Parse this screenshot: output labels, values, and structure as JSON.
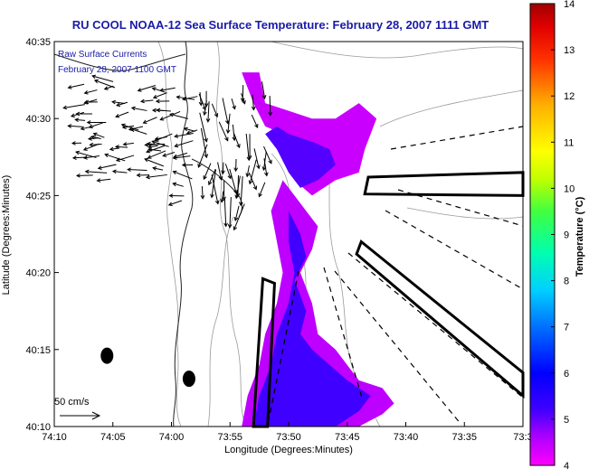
{
  "chart_data": {
    "type": "heatmap",
    "title": "RU COOL  NOAA-12  Sea Surface Temperature:  February 28, 2007 1111 GMT",
    "xlabel": "Longitude (Degrees:Minutes)",
    "ylabel": "Latitude (Degrees:Minutes)",
    "x_ticks": [
      {
        "v": 0,
        "label": "74:10"
      },
      {
        "v": 5,
        "label": "74:05"
      },
      {
        "v": 10,
        "label": "74:00"
      },
      {
        "v": 15,
        "label": "73:55"
      },
      {
        "v": 20,
        "label": "73:50"
      },
      {
        "v": 25,
        "label": "73:45"
      },
      {
        "v": 30,
        "label": "73:40"
      },
      {
        "v": 35,
        "label": "73:35"
      },
      {
        "v": 40,
        "label": "73:3"
      }
    ],
    "y_ticks": [
      {
        "v": 0,
        "label": "40:10"
      },
      {
        "v": 5,
        "label": "40:15"
      },
      {
        "v": 10,
        "label": "40:20"
      },
      {
        "v": 15,
        "label": "40:25"
      },
      {
        "v": 20,
        "label": "40:30"
      },
      {
        "v": 25,
        "label": "40:35"
      }
    ],
    "xlim": [
      0,
      40
    ],
    "ylim": [
      0,
      25
    ],
    "colorbar": {
      "label": "Temperature (°C)",
      "min": 4,
      "max": 14,
      "ticks": [
        "4",
        "5",
        "6",
        "7",
        "8",
        "9",
        "10",
        "11",
        "12",
        "13",
        "14"
      ]
    },
    "overlay_text": [
      "Raw Surface Currents",
      "February 28, 2007 1100 GMT"
    ],
    "scale_label": "50 cm/s",
    "sst_patches": [
      {
        "temp": 4.4,
        "poly": [
          [
            16,
            23
          ],
          [
            17,
            21
          ],
          [
            18,
            19.5
          ],
          [
            19.5,
            19
          ],
          [
            20,
            17.5
          ],
          [
            20.5,
            16
          ],
          [
            22,
            15
          ],
          [
            24,
            16
          ],
          [
            26,
            16.5
          ],
          [
            26.5,
            18
          ],
          [
            27.5,
            20
          ],
          [
            26,
            21
          ],
          [
            24,
            20
          ],
          [
            22,
            20
          ],
          [
            20,
            20.5
          ],
          [
            18,
            21
          ],
          [
            17.5,
            23
          ]
        ]
      },
      {
        "temp": 5.1,
        "poly": [
          [
            18,
            19
          ],
          [
            19,
            18
          ],
          [
            20,
            16.5
          ],
          [
            21,
            15.5
          ],
          [
            22.5,
            16
          ],
          [
            24,
            17
          ],
          [
            23.5,
            18
          ],
          [
            22,
            18.5
          ],
          [
            20,
            19
          ],
          [
            19,
            19.5
          ]
        ]
      },
      {
        "temp": 4.5,
        "poly": [
          [
            19.5,
            16
          ],
          [
            20.5,
            15
          ],
          [
            21.5,
            14
          ],
          [
            22.5,
            13
          ],
          [
            22,
            11.5
          ],
          [
            21,
            10
          ],
          [
            22,
            8
          ],
          [
            22.5,
            6
          ],
          [
            24,
            5
          ],
          [
            25,
            4
          ],
          [
            26,
            3
          ],
          [
            28,
            2.5
          ],
          [
            29,
            1.5
          ],
          [
            28,
            0.8
          ],
          [
            26,
            0
          ],
          [
            16,
            0
          ],
          [
            16.5,
            2
          ],
          [
            17.5,
            4
          ],
          [
            18,
            6
          ],
          [
            19,
            8
          ],
          [
            19.5,
            10
          ],
          [
            19,
            12
          ],
          [
            18.5,
            14
          ]
        ]
      },
      {
        "temp": 5.2,
        "poly": [
          [
            20,
            14
          ],
          [
            21,
            12.5
          ],
          [
            21.5,
            11
          ],
          [
            20.5,
            9.5
          ],
          [
            21.5,
            7.5
          ],
          [
            21,
            6
          ],
          [
            22,
            5
          ],
          [
            23.5,
            4
          ],
          [
            25,
            3
          ],
          [
            27,
            2
          ],
          [
            26,
            1
          ],
          [
            24,
            0
          ],
          [
            17,
            0
          ],
          [
            17.5,
            2
          ],
          [
            18.5,
            4
          ],
          [
            19,
            6
          ],
          [
            20,
            8
          ],
          [
            20.5,
            10
          ],
          [
            20,
            12
          ]
        ]
      }
    ],
    "dots": [
      [
        4.5,
        4.6
      ],
      [
        11.5,
        3.1
      ]
    ],
    "boxes": [
      [
        [
          26.8,
          16.2
        ],
        [
          40,
          16.5
        ],
        [
          40,
          15
        ],
        [
          26.5,
          15.1
        ]
      ],
      [
        [
          26.2,
          12
        ],
        [
          40,
          3.5
        ],
        [
          40,
          2
        ],
        [
          25.8,
          11.2
        ]
      ],
      [
        [
          17,
          0
        ],
        [
          18.2,
          0
        ],
        [
          18.8,
          9.3
        ],
        [
          17.8,
          9.6
        ]
      ]
    ]
  }
}
